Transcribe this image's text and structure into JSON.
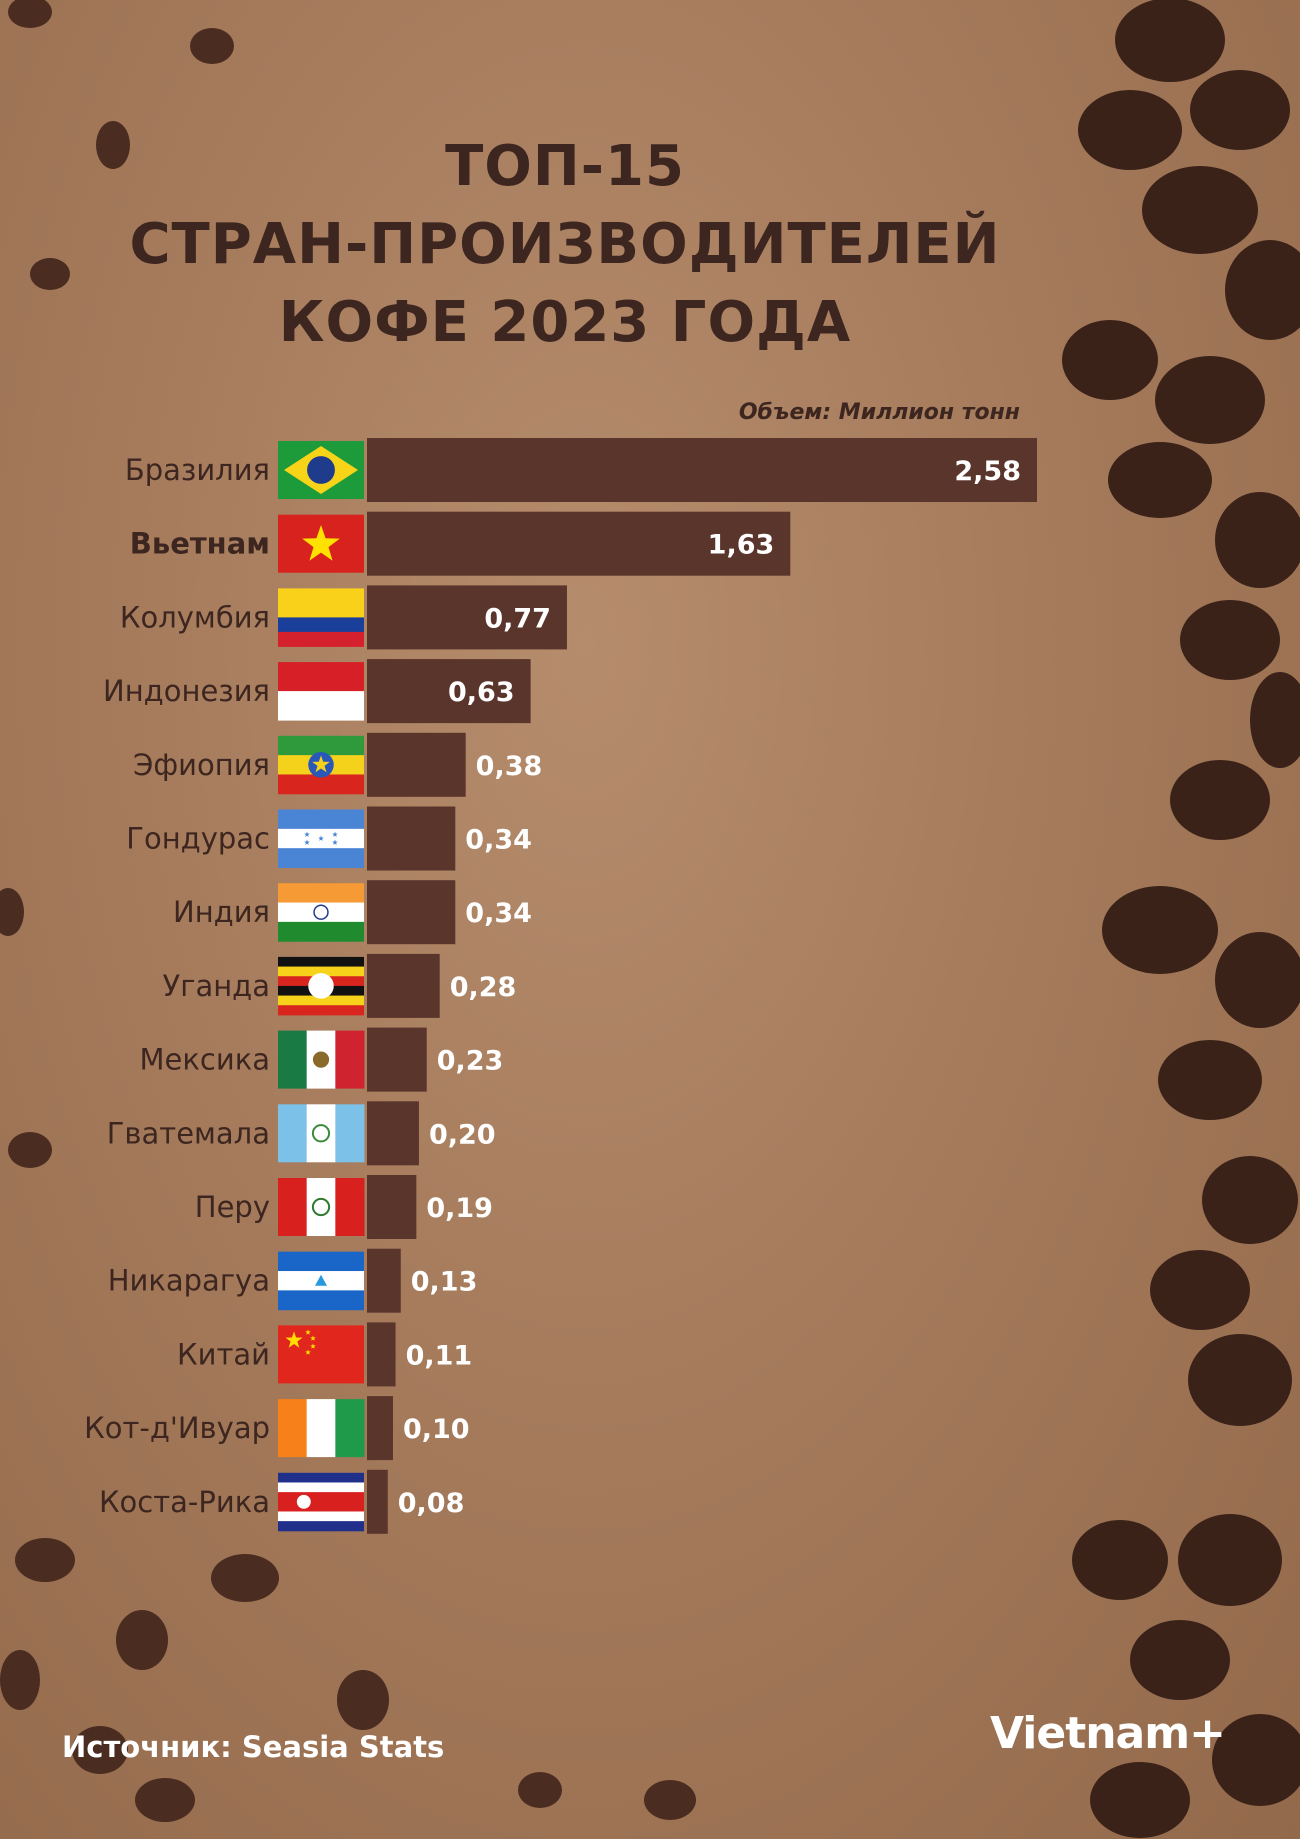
{
  "title_lines": [
    "ТОП-15",
    "СТРАН-ПРОИЗВОДИТЕЛЕЙ",
    "КОФЕ 2023 ГОДА"
  ],
  "unit_label": "Объем: Миллион тонн",
  "source": "Источник: Seasia Stats",
  "logo": "Vietnam+",
  "colors": {
    "bar": "#5a352c",
    "text_dark": "#3d2620",
    "value_text": "#ffffff"
  },
  "chart_data": {
    "type": "bar",
    "orientation": "horizontal",
    "xlim": [
      0,
      2.58
    ],
    "highlight": "Вьетнам",
    "categories": [
      "Бразилия",
      "Вьетнам",
      "Колумбия",
      "Индонезия",
      "Эфиопия",
      "Гондурас",
      "Индия",
      "Уганда",
      "Мексика",
      "Гватемала",
      "Перу",
      "Никарагуа",
      "Китай",
      "Кот-д'Ивуар",
      "Коста-Рика"
    ],
    "values": [
      2.58,
      1.63,
      0.77,
      0.63,
      0.38,
      0.34,
      0.34,
      0.28,
      0.23,
      0.2,
      0.19,
      0.13,
      0.11,
      0.1,
      0.08
    ],
    "value_labels": [
      "2,58",
      "1,63",
      "0,77",
      "0,63",
      "0,38",
      "0,34",
      "0,34",
      "0,28",
      "0,23",
      "0,20",
      "0,19",
      "0,13",
      "0,11",
      "0,10",
      "0,08"
    ],
    "flag_icons": [
      "flag-brazil-icon",
      "flag-vietnam-icon",
      "flag-colombia-icon",
      "flag-indonesia-icon",
      "flag-ethiopia-icon",
      "flag-honduras-icon",
      "flag-india-icon",
      "flag-uganda-icon",
      "flag-mexico-icon",
      "flag-guatemala-icon",
      "flag-peru-icon",
      "flag-nicaragua-icon",
      "flag-china-icon",
      "flag-cote-divoire-icon",
      "flag-costa-rica-icon"
    ]
  }
}
